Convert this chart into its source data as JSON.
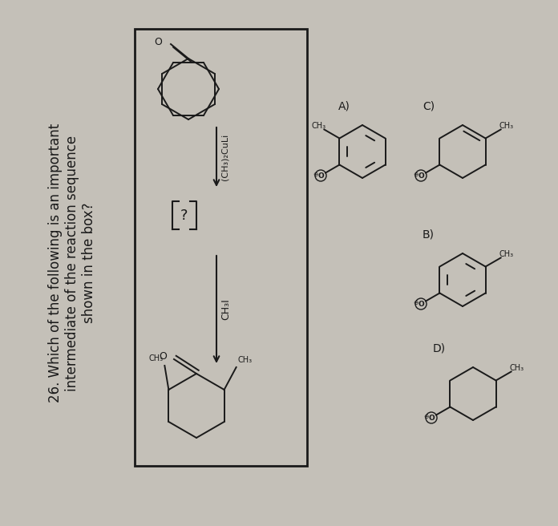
{
  "bg_color": "#c4c0b8",
  "text_color": "#1a1a1a",
  "box_color": "#1a1a1a",
  "title_line1": "26. Which of the following is an important",
  "title_line2": "intermediate of the reaction sequence",
  "title_line3": "shown in the box?",
  "title_fontsize": 12.5,
  "label_fontsize": 9.5
}
